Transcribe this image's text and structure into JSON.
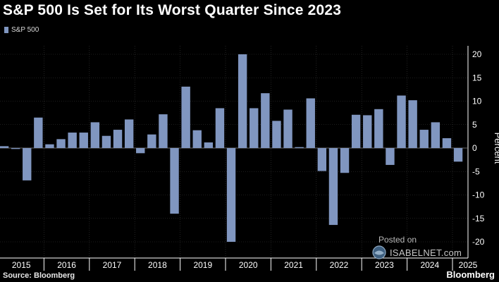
{
  "chart_data": {
    "type": "bar",
    "title": "S&P 500 Is Set for Its Worst Quarter Since 2023",
    "ylabel": "Percent",
    "ylim": [
      -22,
      22
    ],
    "yticks": [
      20,
      15,
      10,
      5,
      0,
      -5,
      -10,
      -15,
      -20
    ],
    "grid": true,
    "legend_position": "top-left",
    "bar_color": "#8096C0",
    "series": [
      {
        "name": "S&P 500",
        "values": [
          0.4,
          -0.2,
          -6.9,
          6.5,
          0.8,
          1.9,
          3.3,
          3.3,
          5.5,
          2.6,
          3.9,
          6.1,
          -1.1,
          2.9,
          7.2,
          -14.0,
          13.1,
          3.8,
          1.2,
          8.5,
          -20.0,
          20.0,
          8.5,
          11.7,
          5.8,
          8.2,
          0.2,
          10.6,
          -4.9,
          -16.4,
          -5.3,
          7.1,
          7.0,
          8.3,
          -3.6,
          11.2,
          10.2,
          3.9,
          5.5,
          2.1,
          -2.9
        ]
      }
    ],
    "years": [
      "2015",
      "2016",
      "2017",
      "2018",
      "2019",
      "2020",
      "2021",
      "2022",
      "2023",
      "2024",
      "2025"
    ]
  },
  "footer": {
    "source": "Source: Bloomberg",
    "brand": "Bloomberg"
  },
  "watermark": {
    "posted": "Posted on",
    "site": "ISABELNET.com"
  },
  "colors": {
    "background": "#000000",
    "grid": "#3a3a3a",
    "axis": "#ffffff",
    "tick_text": "#ffffff"
  }
}
